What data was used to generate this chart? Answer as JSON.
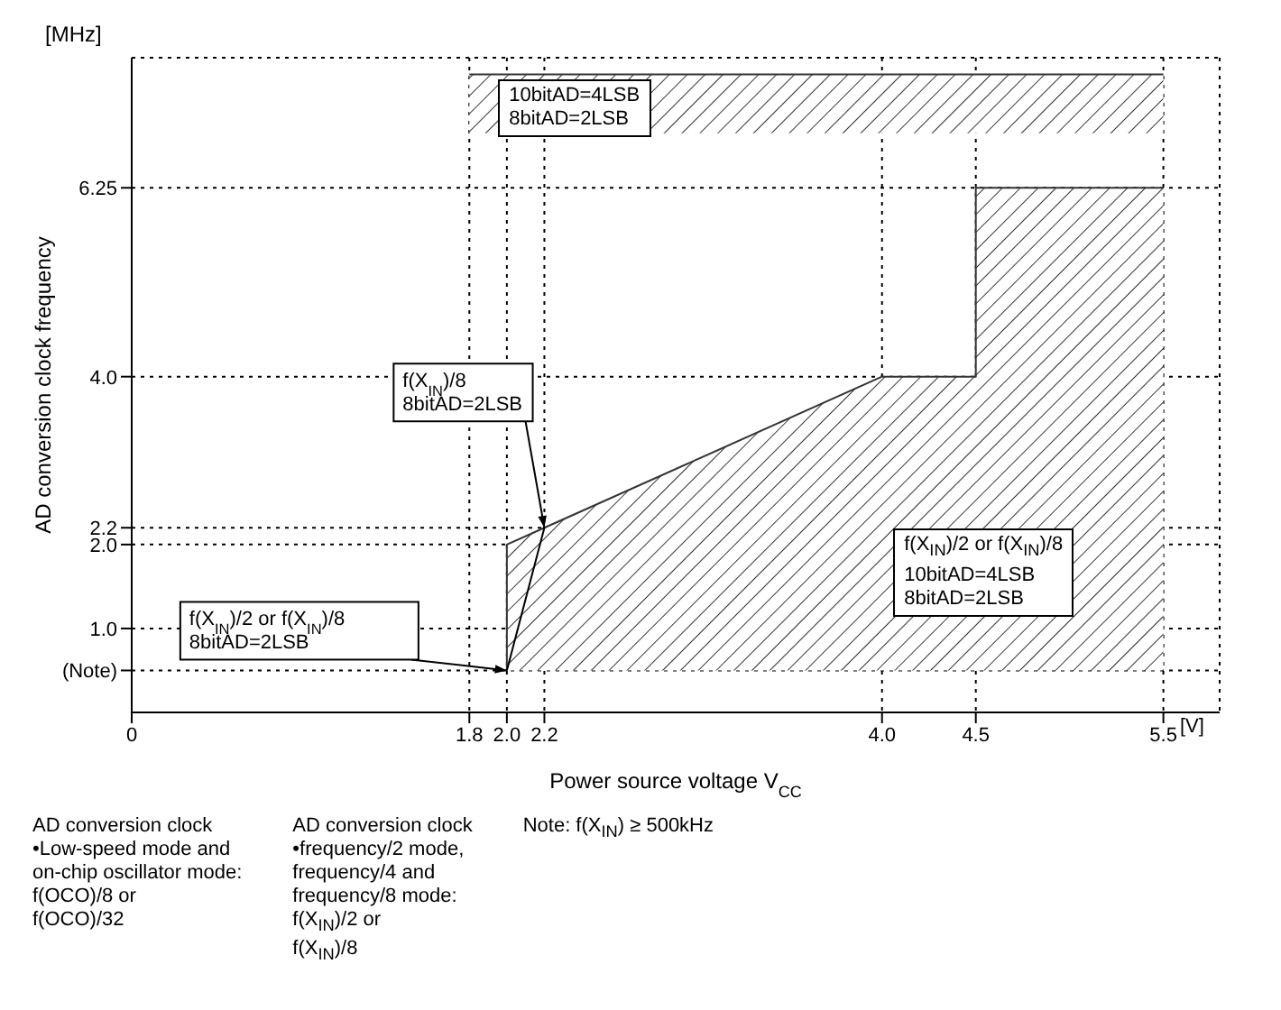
{
  "chart_data": {
    "type": "line",
    "xlabel": "Power source voltage V$_{CC}$",
    "ylabel": "AD conversion clock frequency",
    "series": [
      {
        "color": "#333333",
        "x": [
          2.0,
          2.0,
          2.2,
          4.0,
          4.5,
          4.5,
          5.5
        ],
        "values": [
          0.5,
          2.0,
          2.2,
          4.0,
          4.0,
          6.25,
          6.25
        ],
        "lower": [
          0.5,
          0.5,
          0.5,
          0.5,
          0.5,
          0.5,
          0.5
        ],
        "upper": [
          0.5,
          2.0,
          2.2,
          4.0,
          4.0,
          6.25,
          6.25
        ]
      },
      {
        "color": "#333333",
        "x": [
          1.8,
          5.5
        ],
        "values": [
          7.6,
          7.6
        ],
        "lower": [
          6.9,
          6.9
        ],
        "upper": [
          7.6,
          7.6
        ]
      },
      {
        "color": "#000000",
        "x": [
          2.0,
          2.2
        ],
        "values": [
          0.5,
          2.2
        ]
      }
    ],
    "xlim": [
      0,
      5.8
    ],
    "ylim": [
      0,
      7.8
    ],
    "xticks": [
      0,
      1.8,
      {
        "value": 2,
        "label": "2.0"
      },
      2.2,
      {
        "value": 4,
        "label": "4.0"
      },
      4.5,
      5.5
    ],
    "yticks": [
      {
        "value": 0.5,
        "label": "(Note)"
      },
      {
        "value": 1,
        "label": "1.0"
      },
      {
        "value": 2,
        "label": "2.0"
      },
      2.2,
      {
        "value": 4,
        "label": "4.0"
      },
      6.25
    ],
    "grid": true,
    "marker": "none",
    "annotations": [
      {
        "text": "f(X$_{IN}$)/8\n8bitAD=2LSB",
        "x": 2.2,
        "y": 2.2
      },
      "f(X$_{IN}$)/2 or f(X$_{IN}$)/8\n8bitAD=2LSB",
      "10bitAD=4LSB\n8bitAD=2LSB",
      "f(X$_{IN}$)/2 or f(X$_{IN}$)/8\n10bitAD=4LSB\n8bitAD=2LSB",
      "[MHz]",
      "[V]",
      "AD conversion clock\n•Low-speed mode and\non-chip oscillator mode:\nf(OCO)/8 or\nf(OCO)/32",
      "AD conversion clock\n•frequency/2 mode,\nfrequency/4 and\nfrequency/8 mode:\nf(X$_{IN}$)/2 or\nf(X$_{IN}$)/8",
      "Note: f(X$_{IN}$) ≥ 500kHz"
    ]
  }
}
